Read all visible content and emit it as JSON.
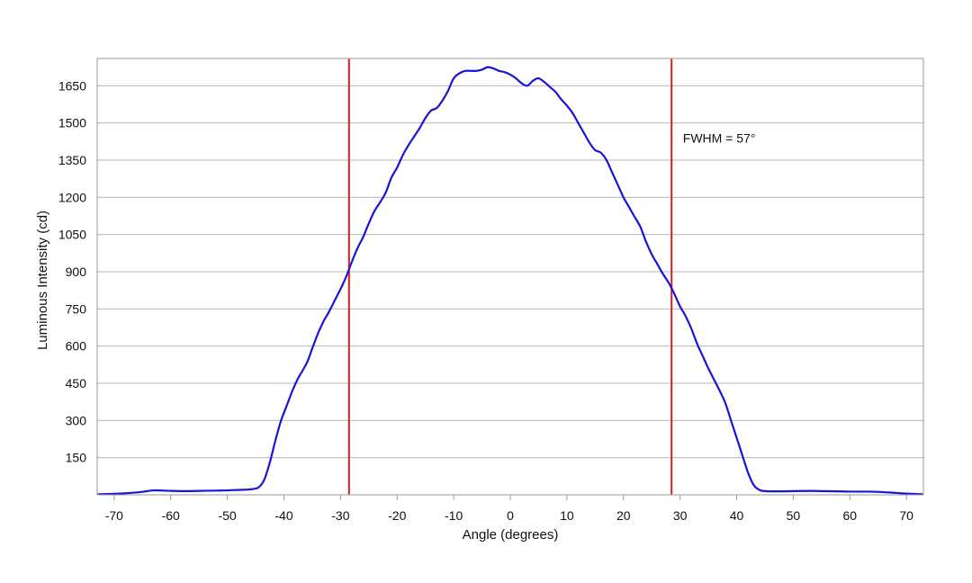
{
  "chart_data": {
    "type": "line",
    "title": "",
    "xlabel": "Angle (degrees)",
    "ylabel": "Luminous Intensity (cd)",
    "xlim": [
      -73,
      73
    ],
    "ylim": [
      0,
      1760
    ],
    "x_ticks": [
      -70,
      -60,
      -50,
      -40,
      -30,
      -20,
      -10,
      0,
      10,
      20,
      30,
      40,
      50,
      60,
      70
    ],
    "x_tick_labels": [
      "-70",
      "-60",
      "-50",
      "-40",
      "-30",
      "-20",
      "-10",
      "0",
      "10",
      "20",
      "30",
      "40",
      "50",
      "60",
      "70"
    ],
    "y_ticks": [
      150,
      300,
      450,
      600,
      750,
      900,
      1050,
      1200,
      1350,
      1500,
      1650
    ],
    "y_tick_labels": [
      "150",
      "300",
      "450",
      "600",
      "750",
      "900",
      "1050",
      "1200",
      "1350",
      "1500",
      "1650"
    ],
    "grid": {
      "horizontal": true,
      "vertical": false
    },
    "series": [
      {
        "color": "#1a14d6",
        "x": [
          -73,
          -70,
          -67,
          -65,
          -63,
          -60,
          -57,
          -55,
          -52,
          -50,
          -48,
          -46,
          -44.5,
          -43.5,
          -42.5,
          -41.5,
          -40.5,
          -39.5,
          -38.5,
          -37.5,
          -36,
          -35,
          -34,
          -33,
          -32,
          -31,
          -30,
          -29,
          -28,
          -27,
          -26,
          -25,
          -24,
          -23,
          -22,
          -21,
          -20,
          -19,
          -18,
          -17,
          -16,
          -15,
          -14,
          -13,
          -12,
          -11,
          -10,
          -9,
          -8,
          -7,
          -6,
          -5,
          -4,
          -3,
          -2,
          -1,
          0,
          1,
          2,
          3,
          4,
          5,
          6,
          7,
          8,
          9,
          10,
          11,
          12,
          13,
          14,
          15,
          16,
          17,
          18,
          19,
          20,
          21,
          22,
          23,
          24,
          25,
          26,
          27,
          28,
          29,
          30,
          31,
          32,
          33,
          34,
          35,
          36,
          37,
          38,
          39,
          40,
          41,
          42,
          43,
          44,
          45,
          47,
          50,
          53,
          55,
          58,
          60,
          63,
          65,
          68,
          70,
          73
        ],
        "y": [
          2,
          4,
          8,
          12,
          18,
          16,
          15,
          16,
          17,
          18,
          20,
          22,
          30,
          60,
          130,
          220,
          300,
          360,
          420,
          470,
          530,
          590,
          650,
          700,
          740,
          785,
          830,
          880,
          940,
          995,
          1040,
          1095,
          1145,
          1180,
          1220,
          1280,
          1320,
          1370,
          1410,
          1445,
          1480,
          1520,
          1550,
          1560,
          1590,
          1630,
          1680,
          1700,
          1710,
          1710,
          1710,
          1715,
          1725,
          1720,
          1710,
          1705,
          1695,
          1680,
          1660,
          1650,
          1670,
          1680,
          1665,
          1645,
          1625,
          1595,
          1570,
          1540,
          1500,
          1460,
          1420,
          1390,
          1380,
          1350,
          1300,
          1250,
          1200,
          1160,
          1120,
          1080,
          1020,
          970,
          930,
          890,
          855,
          810,
          760,
          720,
          670,
          610,
          560,
          510,
          465,
          420,
          370,
          300,
          230,
          160,
          90,
          40,
          20,
          15,
          14,
          15,
          16,
          15,
          14,
          13,
          13,
          12,
          8,
          5,
          2
        ]
      }
    ],
    "reference_lines": [
      {
        "x": -28.5,
        "color": "#d42020"
      },
      {
        "x": 28.5,
        "color": "#d42020"
      }
    ],
    "annotations": [
      {
        "text": "FWHM = 57°",
        "x": 30.5,
        "y": 1420
      }
    ],
    "colors": {
      "frame": "#9a9a9a",
      "grid": "#b4b4b4",
      "text": "#111111"
    }
  }
}
